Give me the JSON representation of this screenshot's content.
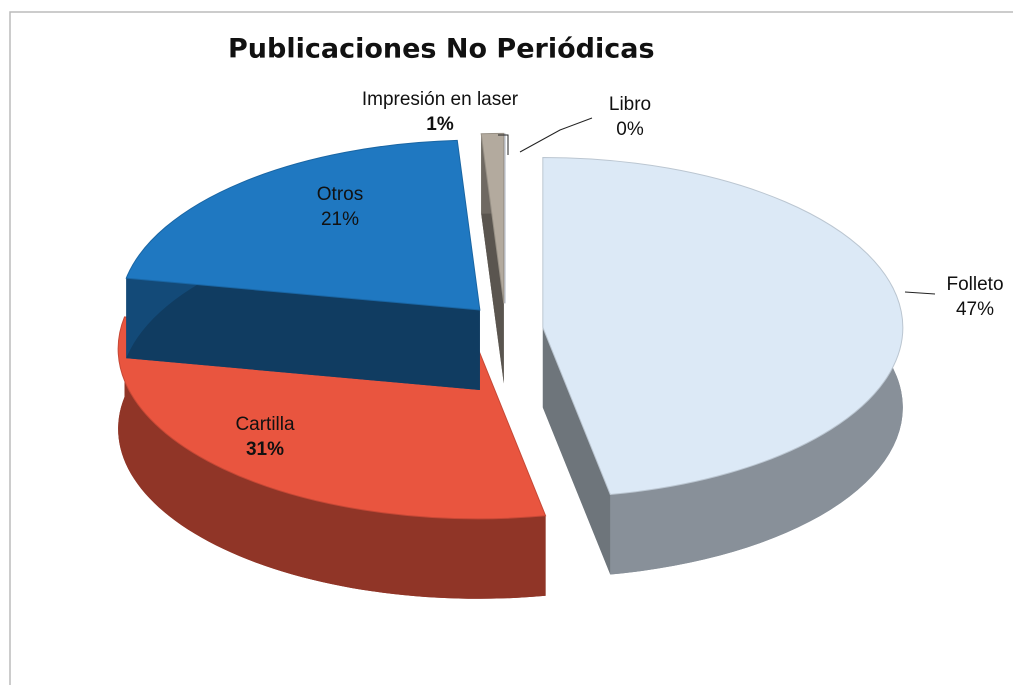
{
  "chart_data": {
    "type": "pie",
    "title": "Publicaciones No Periódicas",
    "categories": [
      "Folleto",
      "Cartilla",
      "Otros",
      "Impresión en laser",
      "Libro"
    ],
    "values": [
      47,
      31,
      21,
      1,
      0
    ],
    "value_labels": [
      "47%",
      "31%",
      "21%",
      "1%",
      "0%"
    ],
    "colors": [
      "#dce9f6",
      "#e9553f",
      "#1f78c1",
      "#b3aa9e",
      "#c9d2e3"
    ]
  }
}
